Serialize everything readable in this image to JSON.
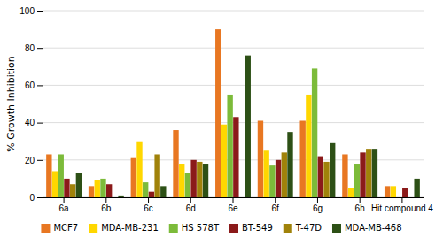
{
  "chart_data": {
    "type": "bar",
    "categories": [
      "6a",
      "6b",
      "6c",
      "6d",
      "6e",
      "6f",
      "6g",
      "6h",
      "Hit compound 4"
    ],
    "series": [
      {
        "name": "MCF7",
        "color": "#E87722",
        "values": [
          23,
          6,
          21,
          36,
          90,
          41,
          41,
          23,
          6
        ]
      },
      {
        "name": "MDA-MB-231",
        "color": "#FFD700",
        "values": [
          14,
          9,
          30,
          18,
          39,
          25,
          55,
          5,
          6
        ]
      },
      {
        "name": "HS 578T",
        "color": "#7CBB3A",
        "values": [
          23,
          10,
          8,
          13,
          55,
          17,
          69,
          18,
          0
        ]
      },
      {
        "name": "BT-549",
        "color": "#8B1A1A",
        "values": [
          10,
          7,
          3,
          20,
          43,
          20,
          22,
          24,
          5
        ]
      },
      {
        "name": "T-47D",
        "color": "#A0820A",
        "values": [
          7,
          0,
          23,
          19,
          0,
          24,
          19,
          26,
          0
        ]
      },
      {
        "name": "MDA-MB-468",
        "color": "#2D5016",
        "values": [
          13,
          1,
          6,
          18,
          76,
          35,
          29,
          26,
          10
        ]
      }
    ],
    "ylabel": "% Growth Inhibition",
    "ylim": [
      0,
      100
    ],
    "yticks": [
      0,
      20,
      40,
      60,
      80,
      100
    ],
    "grid": true,
    "legend": "bottom"
  }
}
